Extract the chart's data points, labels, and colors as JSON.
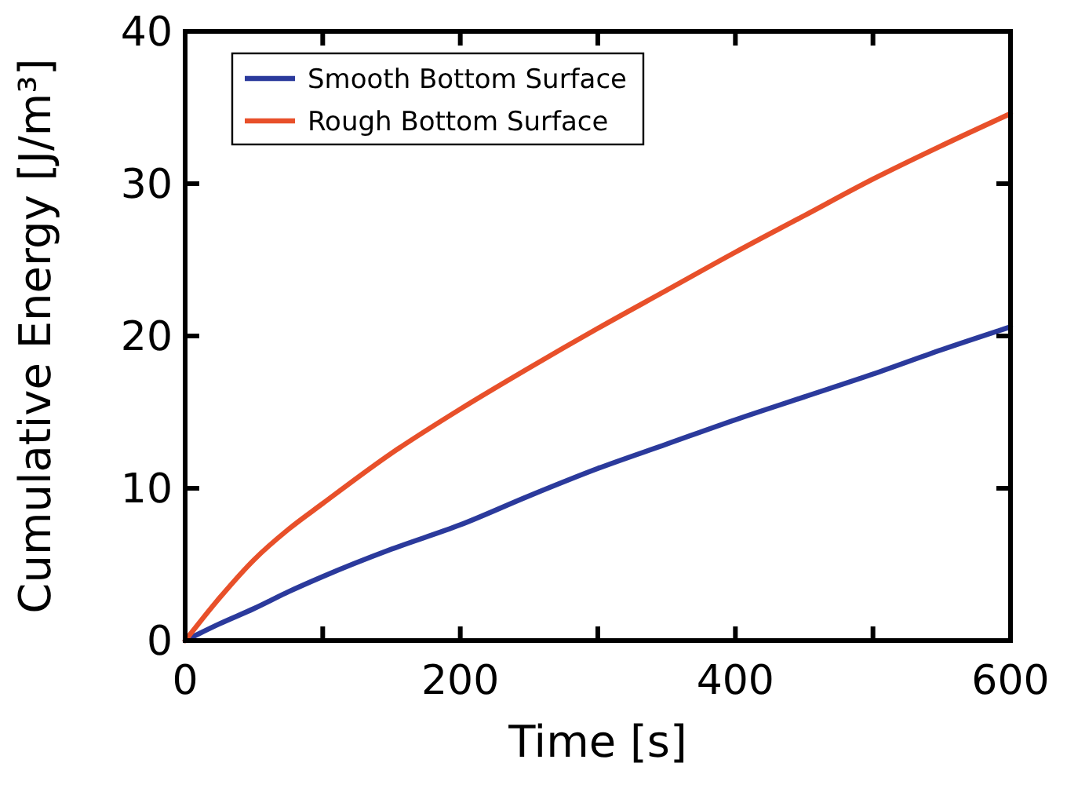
{
  "chart_data": {
    "type": "line",
    "xlabel": "Time [s]",
    "ylabel": "Cumulative Energy [J/m³]",
    "x": [
      0,
      25,
      50,
      75,
      100,
      150,
      200,
      250,
      300,
      350,
      400,
      450,
      500,
      550,
      600
    ],
    "series": [
      {
        "name": "Smooth Bottom Surface",
        "color": "#2b3a9c",
        "values": [
          0,
          1.1,
          2.1,
          3.2,
          4.2,
          6.0,
          7.6,
          9.5,
          11.3,
          12.9,
          14.5,
          16.0,
          17.5,
          19.1,
          20.6
        ]
      },
      {
        "name": "Rough Bottom Surface",
        "color": "#e8502a",
        "values": [
          0,
          2.8,
          5.3,
          7.3,
          9.0,
          12.3,
          15.2,
          17.9,
          20.5,
          23.0,
          25.5,
          27.9,
          30.3,
          32.5,
          34.6
        ]
      }
    ],
    "xlim": [
      0,
      600
    ],
    "ylim": [
      0,
      40
    ],
    "xticks": [
      0,
      {
        "value": 100,
        "label": null
      },
      200,
      {
        "value": 300,
        "label": null
      },
      400,
      {
        "value": 500,
        "label": null
      },
      600
    ],
    "yticks": [
      0,
      10,
      20,
      30,
      40
    ],
    "legend": "top left",
    "grid": false,
    "marker": "none",
    "line_style": "solid"
  }
}
